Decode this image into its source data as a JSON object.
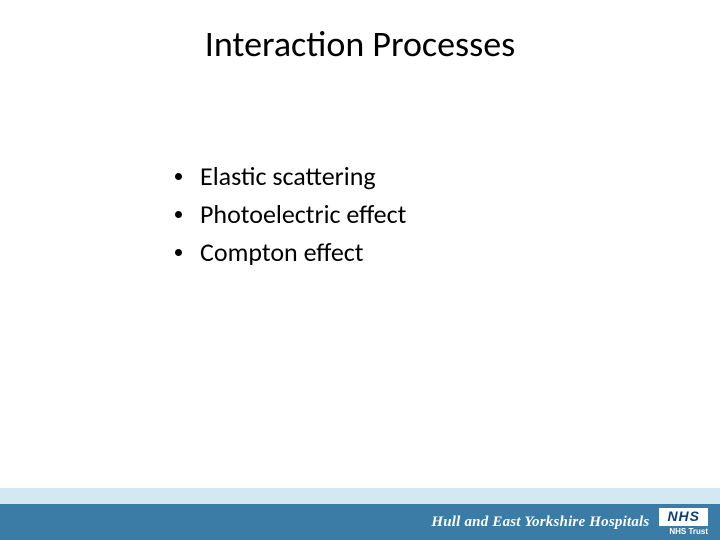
{
  "slide": {
    "title": "Interaction Processes",
    "title_fontsize": 36,
    "title_color": "#000000",
    "bullets": [
      "Elastic scattering",
      "Photoelectric effect",
      "Compton effect"
    ],
    "bullet_fontsize": 26,
    "bullet_color": "#000000",
    "background_color": "#ffffff"
  },
  "footer": {
    "light_band_color": "#d4e8f2",
    "light_band_height": 16,
    "dark_band_color": "#3a7ca5",
    "dark_band_height": 36,
    "org_prefix": "Hull and East Yorkshire Hospitals",
    "org_color": "#ffffff",
    "org_fontsize": 15,
    "nhs_logo_text": "NHS",
    "nhs_logo_bg": "#ffffff",
    "nhs_logo_color": "#0a3e7a",
    "nhs_logo_fontsize": 14,
    "nhs_sub_text": "NHS Trust",
    "nhs_sub_color": "#ffffff",
    "nhs_sub_fontsize": 8
  }
}
